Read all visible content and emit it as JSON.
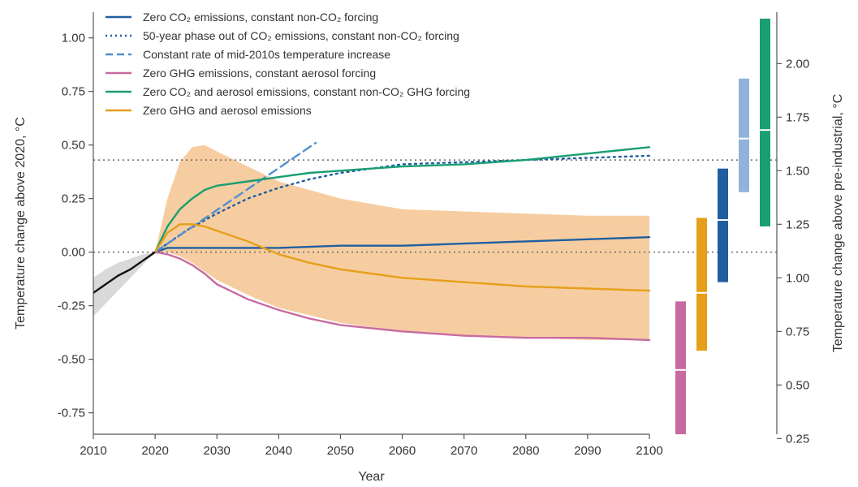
{
  "chart_data": {
    "type": "line",
    "title": "",
    "xlabel": "Year",
    "ylabel": "Temperature change above 2020, °C",
    "y2label": "Temperature change above pre-industrial, °C",
    "xlim": [
      2010,
      2100
    ],
    "ylim": [
      -0.85,
      1.12
    ],
    "y2lim": [
      0.27,
      2.24
    ],
    "y2_offset": 1.12,
    "xticks": [
      2010,
      2020,
      2030,
      2040,
      2050,
      2060,
      2070,
      2080,
      2090,
      2100
    ],
    "yticks": [
      {
        "value": -0.75,
        "label": "-0.75"
      },
      {
        "value": -0.5,
        "label": "-0.50"
      },
      {
        "value": -0.25,
        "label": "-0.25"
      },
      {
        "value": 0,
        "label": "0.00"
      },
      {
        "value": 0.25,
        "label": "0.25"
      },
      {
        "value": 0.5,
        "label": "0.50"
      },
      {
        "value": 0.75,
        "label": "0.75"
      },
      {
        "value": 1.0,
        "label": "1.00"
      }
    ],
    "y2ticks": [
      {
        "value": 0.25,
        "label": "0.25"
      },
      {
        "value": 0.5,
        "label": "0.50"
      },
      {
        "value": 0.75,
        "label": "0.75"
      },
      {
        "value": 1.0,
        "label": "1.00"
      },
      {
        "value": 1.25,
        "label": "1.25"
      },
      {
        "value": 1.5,
        "label": "1.50"
      },
      {
        "value": 1.75,
        "label": "1.75"
      },
      {
        "value": 2.0,
        "label": "2.00"
      }
    ],
    "reference_lines": [
      0.43,
      0.0
    ],
    "legend_position": "top-left",
    "historical": {
      "color": "#111111",
      "band_color": "#d9d9d9",
      "x": [
        2010,
        2012,
        2014,
        2016,
        2018,
        2020
      ],
      "y": [
        -0.19,
        -0.15,
        -0.11,
        -0.08,
        -0.04,
        0.0
      ],
      "low": [
        -0.3,
        -0.24,
        -0.18,
        -0.12,
        -0.06,
        0.0
      ],
      "high": [
        -0.12,
        -0.08,
        -0.05,
        -0.03,
        -0.01,
        0.0
      ]
    },
    "uncertainty_band": {
      "color": "#f5c48f",
      "x": [
        2020,
        2022,
        2024,
        2026,
        2028,
        2030,
        2035,
        2040,
        2050,
        2060,
        2070,
        2080,
        2090,
        2100
      ],
      "high": [
        0.0,
        0.25,
        0.42,
        0.49,
        0.5,
        0.47,
        0.4,
        0.33,
        0.25,
        0.2,
        0.19,
        0.18,
        0.17,
        0.17
      ],
      "low": [
        0.0,
        0.0,
        -0.02,
        -0.05,
        -0.09,
        -0.13,
        -0.2,
        -0.26,
        -0.33,
        -0.37,
        -0.39,
        -0.4,
        -0.41,
        -0.41
      ]
    },
    "series": [
      {
        "name": "Zero CO₂ emissions, constant non-CO₂ forcing",
        "style": "solid",
        "color": "#1f5fa0",
        "x": [
          2020,
          2022,
          2030,
          2040,
          2050,
          2060,
          2070,
          2080,
          2090,
          2100
        ],
        "y": [
          0.0,
          0.02,
          0.02,
          0.02,
          0.03,
          0.03,
          0.04,
          0.05,
          0.06,
          0.07
        ]
      },
      {
        "name": "50-year phase out of CO₂ emissions, constant non-CO₂ forcing",
        "style": "dotted",
        "color": "#1f5fa0",
        "x": [
          2020,
          2025,
          2030,
          2035,
          2040,
          2045,
          2050,
          2055,
          2060,
          2070,
          2080,
          2090,
          2100
        ],
        "y": [
          0.0,
          0.1,
          0.18,
          0.25,
          0.3,
          0.34,
          0.37,
          0.39,
          0.41,
          0.42,
          0.43,
          0.44,
          0.45
        ]
      },
      {
        "name": "Constant rate of mid-2010s temperature increase",
        "style": "dashed",
        "color": "#4f8fd0",
        "x": [
          2020,
          2046
        ],
        "y": [
          0.0,
          0.51
        ]
      },
      {
        "name": "Zero GHG emissions, constant aerosol forcing",
        "style": "solid",
        "color": "#c86aa0",
        "x": [
          2020,
          2022,
          2024,
          2026,
          2028,
          2030,
          2035,
          2040,
          2045,
          2050,
          2060,
          2070,
          2080,
          2090,
          2100
        ],
        "y": [
          0.0,
          -0.01,
          -0.03,
          -0.06,
          -0.1,
          -0.15,
          -0.22,
          -0.27,
          -0.31,
          -0.34,
          -0.37,
          -0.39,
          -0.4,
          -0.4,
          -0.41
        ]
      },
      {
        "name": "Zero CO₂ and aerosol emissions, constant non-CO₂ GHG forcing",
        "style": "solid",
        "color": "#1a9e73",
        "x": [
          2020,
          2022,
          2024,
          2026,
          2028,
          2030,
          2035,
          2040,
          2045,
          2050,
          2060,
          2070,
          2080,
          2090,
          2100
        ],
        "y": [
          0.0,
          0.12,
          0.2,
          0.25,
          0.29,
          0.31,
          0.33,
          0.35,
          0.37,
          0.38,
          0.4,
          0.41,
          0.43,
          0.46,
          0.49
        ]
      },
      {
        "name": "Zero GHG and aerosol emissions",
        "style": "solid",
        "color": "#e69f1a",
        "x": [
          2020,
          2022,
          2024,
          2026,
          2028,
          2030,
          2035,
          2040,
          2045,
          2050,
          2060,
          2070,
          2080,
          2090,
          2100
        ],
        "y": [
          0.0,
          0.09,
          0.13,
          0.13,
          0.12,
          0.1,
          0.05,
          -0.01,
          -0.05,
          -0.08,
          -0.12,
          -0.14,
          -0.16,
          -0.17,
          -0.18
        ]
      }
    ],
    "range_bars": [
      {
        "color": "#c86aa0",
        "low": 0.27,
        "high": 0.89,
        "median": 0.57
      },
      {
        "color": "#e69f1a",
        "low": 0.66,
        "high": 1.28,
        "median": 0.93
      },
      {
        "color": "#1f5fa0",
        "low": 0.98,
        "high": 1.51,
        "median": 1.27
      },
      {
        "color": "#8fb3da",
        "low": 1.4,
        "high": 1.93,
        "median": 1.65
      },
      {
        "color": "#1a9e73",
        "low": 1.24,
        "high": 2.21,
        "median": 1.69
      }
    ]
  }
}
